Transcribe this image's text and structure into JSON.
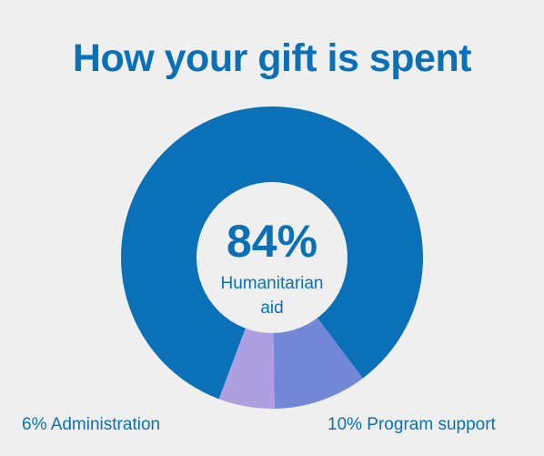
{
  "title": "How your gift is spent",
  "center": {
    "value": "84%",
    "label_line1": "Humanitarian",
    "label_line2": "aid"
  },
  "labels": {
    "administration": "6% Administration",
    "program_support": "10% Program support"
  },
  "colors": {
    "title": "#0a71b9",
    "main": "#0a71b9",
    "program": "#7287d6",
    "admin": "#ae9fe0",
    "background": "#efefef"
  },
  "chart_data": {
    "type": "pie",
    "donut": true,
    "title": "How your gift is spent",
    "slices": [
      {
        "label": "Humanitarian aid",
        "value": 84,
        "color": "#0a71b9"
      },
      {
        "label": "Administration",
        "value": 6,
        "color": "#ae9fe0"
      },
      {
        "label": "Program support",
        "value": 10,
        "color": "#7287d6"
      }
    ]
  }
}
